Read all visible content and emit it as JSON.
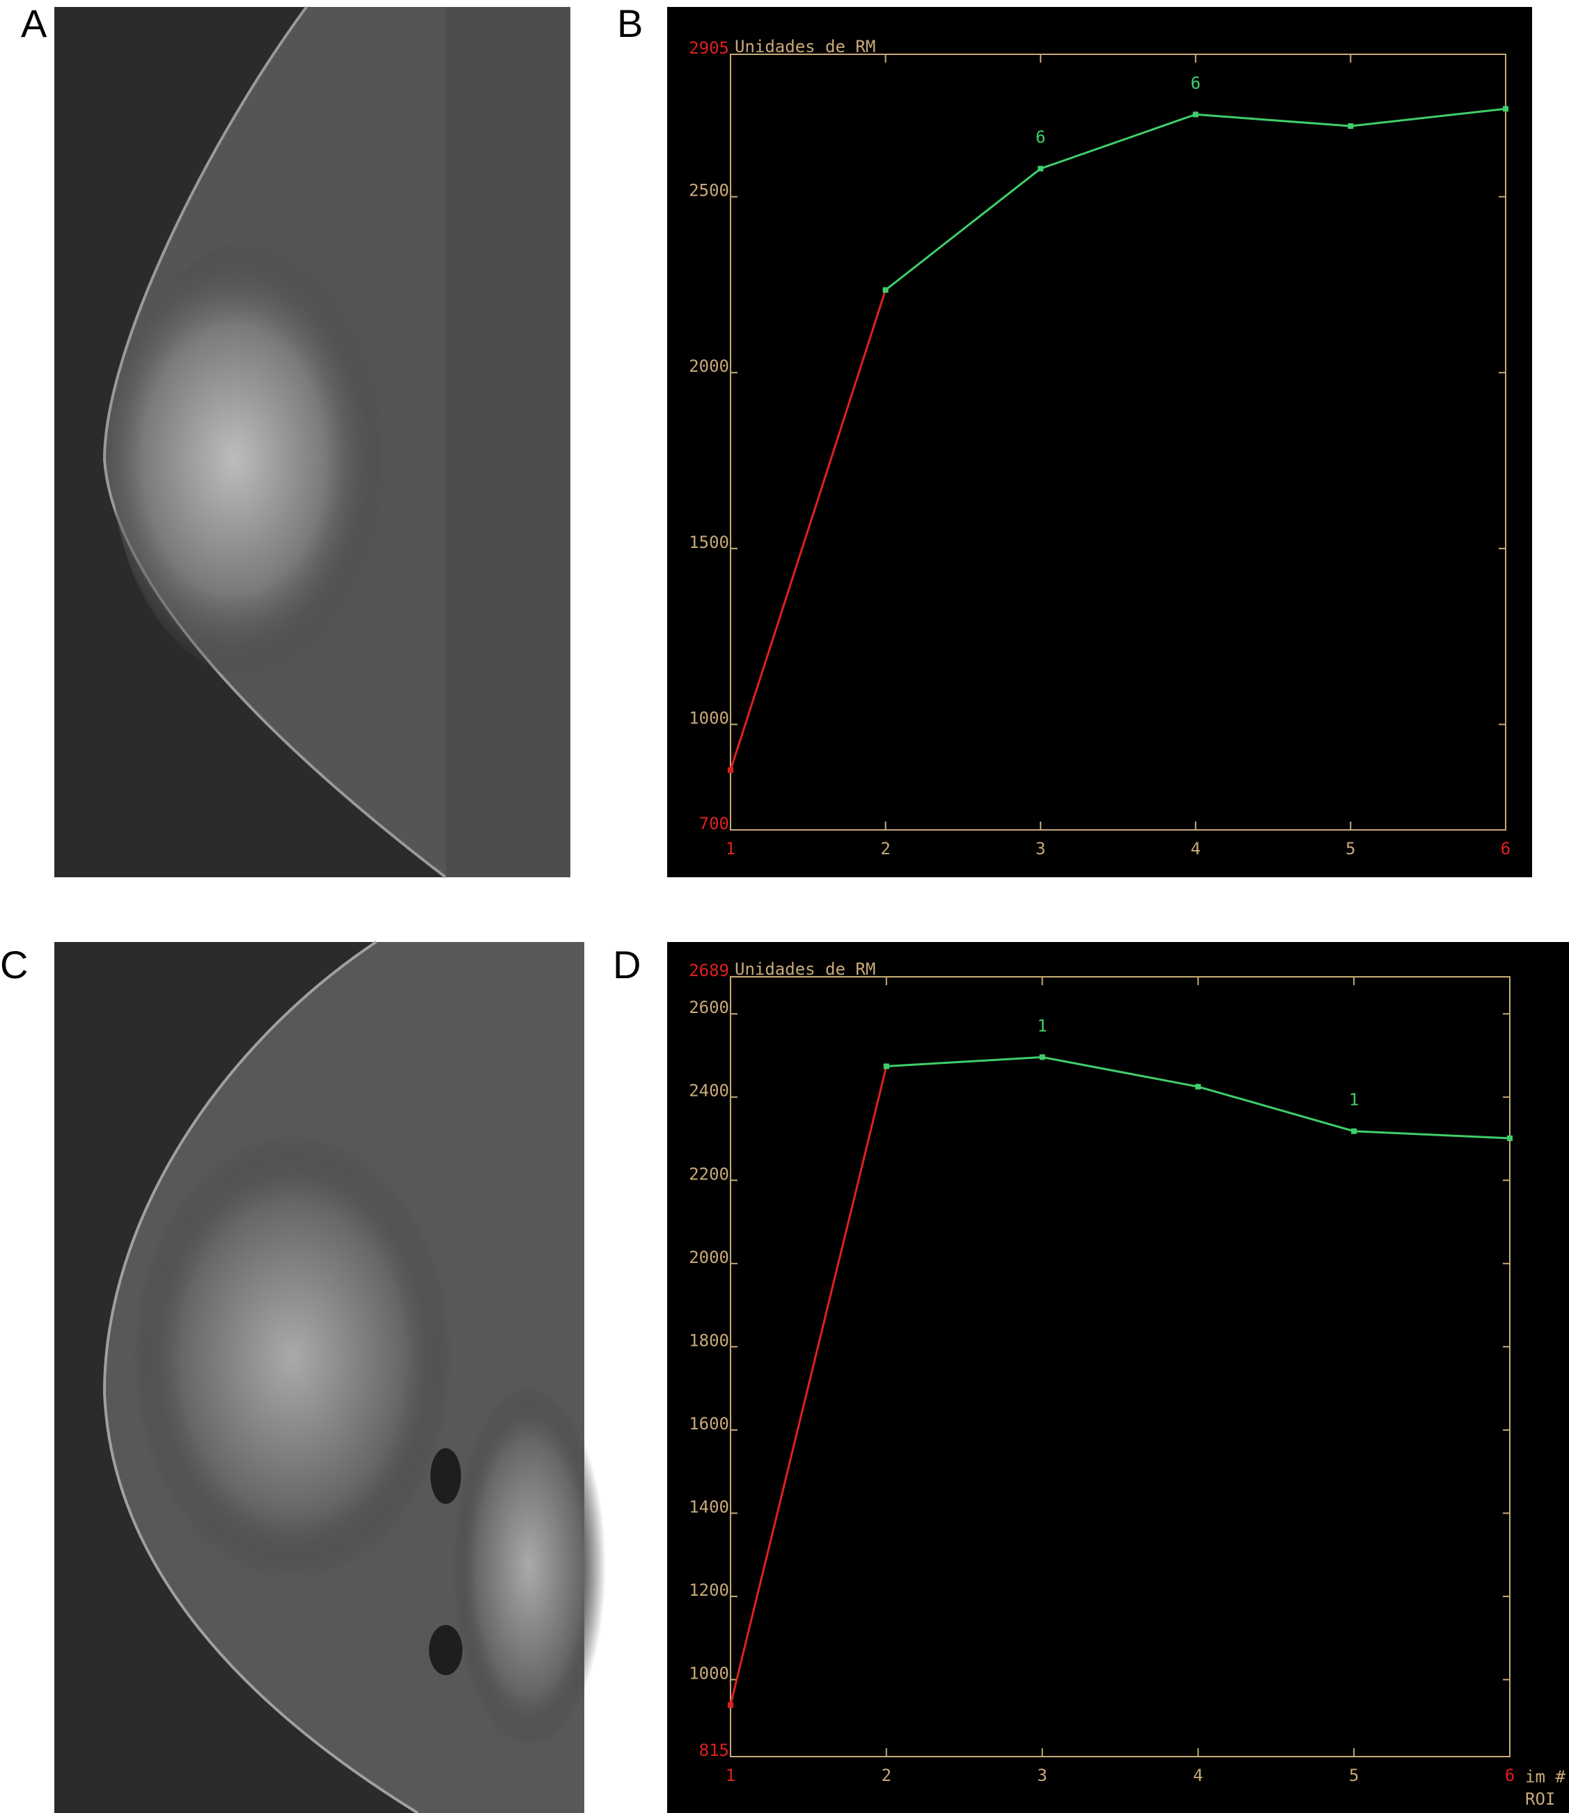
{
  "panel_labels": [
    "A",
    "B",
    "C",
    "D"
  ],
  "chart_data": [
    {
      "type": "line",
      "ylabel": "Unidades de RM",
      "x": [
        1,
        2,
        3,
        4,
        5,
        6
      ],
      "xlim": [
        1,
        6
      ],
      "xticks": [
        1,
        2,
        3,
        4,
        5,
        6
      ],
      "ylim": [
        700,
        2905
      ],
      "yticks": [
        700,
        1000,
        1500,
        2000,
        2500,
        2905
      ],
      "end_tick_color": "#e02020",
      "axis_color": "#c9a979",
      "series": [
        {
          "color": "#e02020",
          "values": [
            870,
            2235,
            null,
            null,
            null,
            null
          ]
        },
        {
          "color": "#3fcf6a",
          "values": [
            null,
            2235,
            2580,
            2734,
            2701,
            2750
          ],
          "point_labels": [
            null,
            null,
            "6",
            "6",
            null,
            null
          ]
        }
      ]
    },
    {
      "type": "line",
      "ylabel": "Unidades de RM",
      "xlabel": "im #",
      "xlabel2": "ROI",
      "x": [
        1,
        2,
        3,
        4,
        5,
        6
      ],
      "xlim": [
        1,
        6
      ],
      "xticks": [
        1,
        2,
        3,
        4,
        5,
        6
      ],
      "ylim": [
        815,
        2689
      ],
      "yticks": [
        815,
        1000,
        1200,
        1400,
        1600,
        1800,
        2000,
        2200,
        2400,
        2600,
        2689
      ],
      "end_tick_color": "#e02020",
      "axis_color": "#c9a979",
      "series": [
        {
          "color": "#e02020",
          "values": [
            939,
            2474,
            null,
            null,
            null,
            null
          ]
        },
        {
          "color": "#3fcf6a",
          "values": [
            null,
            2474,
            2496,
            2425,
            2318,
            2301
          ],
          "point_labels": [
            null,
            null,
            "1",
            null,
            "1",
            null
          ]
        }
      ]
    }
  ]
}
